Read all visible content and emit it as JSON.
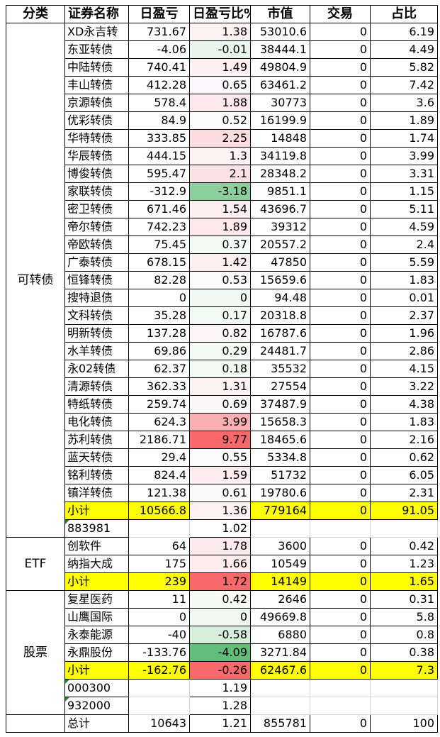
{
  "colors": {
    "subtotal": "#ffff00",
    "positive_strong": "#f8696b",
    "negative_strong": "#63be7b"
  },
  "headers": [
    "分类",
    "证券名称",
    "日盈亏",
    "日盈亏比%",
    "市值",
    "交易",
    "占比"
  ],
  "groups": [
    {
      "category": "可转债",
      "rows": [
        {
          "name": "XD永吉转",
          "pnl": "731.67",
          "pct": "1.38",
          "value": "53010.6",
          "trade": "0",
          "share": "6.19",
          "bg": "#fdf1f4"
        },
        {
          "name": "东亚转债",
          "pnl": "-4.06",
          "pct": "-0.01",
          "value": "38444.1",
          "trade": "0",
          "share": "4.49",
          "bg": "#e9f5ec"
        },
        {
          "name": "中陆转债",
          "pnl": "740.41",
          "pct": "1.49",
          "value": "49804.9",
          "trade": "0",
          "share": "5.82",
          "bg": "#fdeff2"
        },
        {
          "name": "丰山转债",
          "pnl": "412.28",
          "pct": "0.65",
          "value": "63461.2",
          "trade": "0",
          "share": "7.42",
          "bg": "#fbf9fb"
        },
        {
          "name": "京源转债",
          "pnl": "578.4",
          "pct": "1.88",
          "value": "30773",
          "trade": "0",
          "share": "3.6",
          "bg": "#fde8eb"
        },
        {
          "name": "优彩转债",
          "pnl": "84.9",
          "pct": "0.52",
          "value": "16199.9",
          "trade": "0",
          "share": "1.89",
          "bg": "#fbfbfc"
        },
        {
          "name": "华特转债",
          "pnl": "333.85",
          "pct": "2.25",
          "value": "14848",
          "trade": "0",
          "share": "1.74",
          "bg": "#fbdde0"
        },
        {
          "name": "华辰转债",
          "pnl": "444.15",
          "pct": "1.3",
          "value": "34119.8",
          "trade": "0",
          "share": "3.99",
          "bg": "#fdf1f4"
        },
        {
          "name": "博俊转债",
          "pnl": "595.47",
          "pct": "2.1",
          "value": "28348.2",
          "trade": "0",
          "share": "3.31",
          "bg": "#fbe1e4"
        },
        {
          "name": "家联转债",
          "pnl": "-312.9",
          "pct": "-3.18",
          "value": "9851.1",
          "trade": "0",
          "share": "1.15",
          "bg": "#8ccf9d"
        },
        {
          "name": "密卫转债",
          "pnl": "671.46",
          "pct": "1.54",
          "value": "43696.7",
          "trade": "0",
          "share": "5.11",
          "bg": "#fdeef1"
        },
        {
          "name": "帝尔转债",
          "pnl": "742.23",
          "pct": "1.89",
          "value": "39312",
          "trade": "0",
          "share": "4.59",
          "bg": "#fde8eb"
        },
        {
          "name": "帝欧转债",
          "pnl": "75.45",
          "pct": "0.37",
          "value": "20557.2",
          "trade": "0",
          "share": "2.4",
          "bg": "#f4faf6"
        },
        {
          "name": "广泰转债",
          "pnl": "678.15",
          "pct": "1.42",
          "value": "47850",
          "trade": "0",
          "share": "5.59",
          "bg": "#fdf0f3"
        },
        {
          "name": "恒锋转债",
          "pnl": "82.28",
          "pct": "0.53",
          "value": "15659.6",
          "trade": "0",
          "share": "1.83",
          "bg": "#fbfbfc"
        },
        {
          "name": "搜特退债",
          "pnl": "0",
          "pct": "0",
          "value": "94.48",
          "trade": "0",
          "share": "0.01",
          "bg": "#eff8f2"
        },
        {
          "name": "文科转债",
          "pnl": "35.28",
          "pct": "0.17",
          "value": "20318.8",
          "trade": "0",
          "share": "2.37",
          "bg": "#f1f9f4"
        },
        {
          "name": "明新转债",
          "pnl": "137.28",
          "pct": "0.82",
          "value": "16787.6",
          "trade": "0",
          "share": "1.96",
          "bg": "#fcf6f8"
        },
        {
          "name": "水羊转债",
          "pnl": "69.86",
          "pct": "0.29",
          "value": "24481.7",
          "trade": "0",
          "share": "2.86",
          "bg": "#f3f9f5"
        },
        {
          "name": "永02转债",
          "pnl": "62.37",
          "pct": "0.18",
          "value": "35532",
          "trade": "0",
          "share": "4.15",
          "bg": "#f1f9f4"
        },
        {
          "name": "清源转债",
          "pnl": "362.33",
          "pct": "1.31",
          "value": "27554",
          "trade": "0",
          "share": "3.22",
          "bg": "#fdf1f4"
        },
        {
          "name": "特纸转债",
          "pnl": "259.74",
          "pct": "0.69",
          "value": "37487.9",
          "trade": "0",
          "share": "4.38",
          "bg": "#fbf8fa"
        },
        {
          "name": "电化转债",
          "pnl": "624.3",
          "pct": "3.99",
          "value": "15658.3",
          "trade": "0",
          "share": "1.83",
          "bg": "#faafb2"
        },
        {
          "name": "苏利转债",
          "pnl": "2186.71",
          "pct": "9.77",
          "value": "18465.6",
          "trade": "0",
          "share": "2.16",
          "bg": "#f8696b"
        },
        {
          "name": "蓝天转债",
          "pnl": "29.4",
          "pct": "0.55",
          "value": "5334.8",
          "trade": "0",
          "share": "0.62",
          "bg": "#fbfbfc"
        },
        {
          "name": "铭利转债",
          "pnl": "824.4",
          "pct": "1.59",
          "value": "51732",
          "trade": "0",
          "share": "6.05",
          "bg": "#fdedf0"
        },
        {
          "name": "镇洋转债",
          "pnl": "121.38",
          "pct": "0.61",
          "value": "19780.6",
          "trade": "0",
          "share": "2.31",
          "bg": "#fbfafb"
        }
      ],
      "subtotal": {
        "label": "小计",
        "pnl": "10566.8",
        "pct": "1.36",
        "value": "779164",
        "trade": "0",
        "share": "91.05",
        "pct_bg": "#fdf1f4"
      },
      "note": {
        "name": "883981",
        "pct": "1.02"
      }
    },
    {
      "category": "ETF",
      "rows": [
        {
          "name": "创软件",
          "pnl": "64",
          "pct": "1.78",
          "value": "3600",
          "trade": "0",
          "share": "0.42",
          "bg": "#fdeaed"
        },
        {
          "name": "纳指大成",
          "pnl": "175",
          "pct": "1.66",
          "value": "10549",
          "trade": "0",
          "share": "1.23",
          "bg": "#fdecef"
        }
      ],
      "subtotal": {
        "label": "小计",
        "pnl": "239",
        "pct": "1.72",
        "value": "14149",
        "trade": "0",
        "share": "1.65",
        "pct_bg": "#f8696b"
      }
    },
    {
      "category": "股票",
      "rows": [
        {
          "name": "复星医药",
          "pnl": "11",
          "pct": "0.42",
          "value": "2646",
          "trade": "0",
          "share": "0.31",
          "bg": "#f6fbf8"
        },
        {
          "name": "山鹰国际",
          "pnl": "0",
          "pct": "0",
          "value": "49669.8",
          "trade": "0",
          "share": "5.8",
          "bg": "#eff8f2"
        },
        {
          "name": "永泰能源",
          "pnl": "-40",
          "pct": "-0.58",
          "value": "6880",
          "trade": "0",
          "share": "0.8",
          "bg": "#d6eddc"
        },
        {
          "name": "永鼎股份",
          "pnl": "-133.76",
          "pct": "-4.09",
          "value": "3271.84",
          "trade": "0",
          "share": "0.38",
          "bg": "#63be7b"
        }
      ],
      "subtotal": {
        "label": "小计",
        "pnl": "-162.76",
        "pct": "-0.26",
        "value": "62467.6",
        "trade": "0",
        "share": "7.3",
        "pct_bg": "#f8696b"
      },
      "notes": [
        {
          "name": "000300",
          "pct": "1.19"
        },
        {
          "name": "932000",
          "pct": "1.28"
        }
      ]
    }
  ],
  "total": {
    "label": "总计",
    "pnl": "10643",
    "pct": "1.21",
    "value": "855781",
    "trade": "0",
    "share": "100"
  }
}
